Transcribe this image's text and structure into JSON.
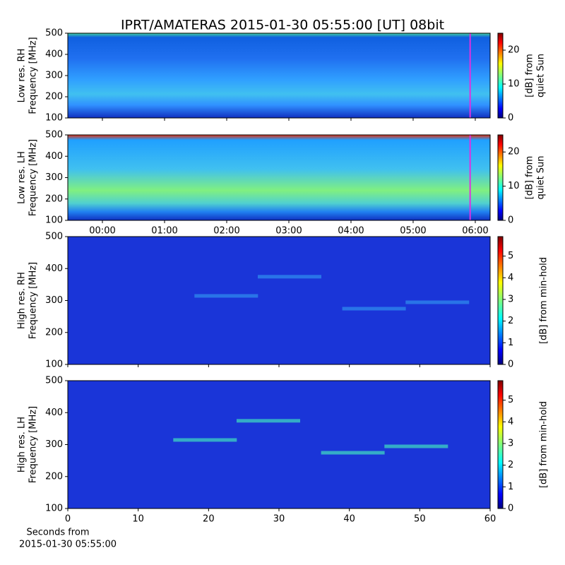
{
  "chart_data": [
    {
      "type": "heatmap",
      "title": "IPRT/AMATERAS 2015-01-30 05:55:00 [UT]   08bit",
      "ylabel": [
        "Low res. RH",
        "Frequency [MHz]"
      ],
      "ylim": [
        100,
        500
      ],
      "yticks": [
        100,
        200,
        300,
        400,
        500
      ],
      "xlim": [
        -0.557,
        6.239
      ],
      "xticks": [
        {
          "value": 0,
          "label": "00:00"
        },
        {
          "value": 1,
          "label": "01:00"
        },
        {
          "value": 2,
          "label": "02:00"
        },
        {
          "value": 3,
          "label": "03:00"
        },
        {
          "value": 4,
          "label": "04:00"
        },
        {
          "value": 5,
          "label": "05:00"
        },
        {
          "value": 6,
          "label": "06:00"
        }
      ],
      "show_xticklabels": false,
      "marker": {
        "value": 5.917,
        "color": "#e030e0"
      },
      "colorbar": {
        "label": [
          "[dB] from",
          "quiet Sun"
        ],
        "lim": [
          0,
          25
        ],
        "ticks": [
          0,
          10,
          20
        ]
      }
    },
    {
      "type": "heatmap",
      "ylabel": [
        "Low res. LH",
        "Frequency [MHz]"
      ],
      "ylim": [
        100,
        500
      ],
      "yticks": [
        100,
        200,
        300,
        400,
        500
      ],
      "xlim": [
        -0.557,
        6.239
      ],
      "xticks": [
        {
          "value": 0,
          "label": "00:00"
        },
        {
          "value": 1,
          "label": "01:00"
        },
        {
          "value": 2,
          "label": "02:00"
        },
        {
          "value": 3,
          "label": "03:00"
        },
        {
          "value": 4,
          "label": "04:00"
        },
        {
          "value": 5,
          "label": "05:00"
        },
        {
          "value": 6,
          "label": "06:00"
        }
      ],
      "show_xticklabels": true,
      "marker": {
        "value": 5.917,
        "color": "#e030e0"
      },
      "colorbar": {
        "label": [
          "[dB] from",
          "quiet Sun"
        ],
        "lim": [
          0,
          25
        ],
        "ticks": [
          0,
          10,
          20
        ]
      }
    },
    {
      "type": "heatmap",
      "ylabel": [
        "High res. RH",
        "Frequency [MHz]"
      ],
      "ylim": [
        100,
        500
      ],
      "yticks": [
        100,
        200,
        300,
        400,
        500
      ],
      "xlim": [
        0,
        60
      ],
      "xticks": [
        0,
        10,
        20,
        30,
        40,
        50,
        60
      ],
      "show_xticklabels": false,
      "colorbar": {
        "label": [
          "[dB] from min-hold"
        ],
        "lim": [
          0,
          5.9
        ],
        "ticks": [
          0,
          1,
          2,
          3,
          4,
          5
        ]
      }
    },
    {
      "type": "heatmap",
      "ylabel": [
        "High res. LH",
        "Frequency [MHz]"
      ],
      "ylim": [
        100,
        500
      ],
      "yticks": [
        100,
        200,
        300,
        400,
        500
      ],
      "xlim": [
        0,
        60
      ],
      "xticks": [
        0,
        10,
        20,
        30,
        40,
        50,
        60
      ],
      "show_xticklabels": true,
      "xlabel": [
        "Seconds from",
        "2015-01-30 05:55:00"
      ],
      "colorbar": {
        "label": [
          "[dB] from min-hold"
        ],
        "lim": [
          0,
          5.9
        ],
        "ticks": [
          0,
          1,
          2,
          3,
          4,
          5
        ]
      }
    }
  ]
}
